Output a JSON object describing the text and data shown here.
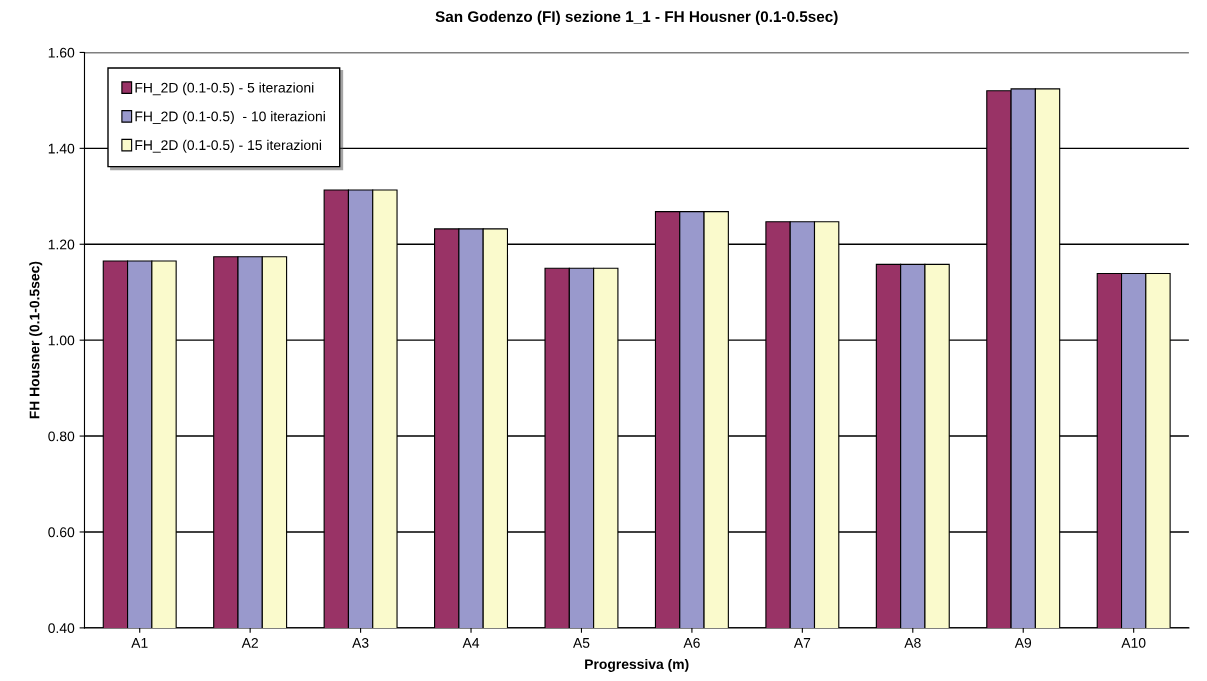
{
  "chart_data": {
    "type": "bar",
    "title": "San Godenzo (FI) sezione 1_1 - FH Housner (0.1-0.5sec)",
    "xlabel": "Progressiva (m)",
    "ylabel": "FH Housner (0.1-0.5sec)",
    "categories": [
      "A1",
      "A2",
      "A3",
      "A4",
      "A5",
      "A6",
      "A7",
      "A8",
      "A9",
      "A10"
    ],
    "series": [
      {
        "name": "FH_2D (0.1-0.5) - 5 iterazioni",
        "color": "#993366",
        "values": [
          1.165,
          1.174,
          1.313,
          1.232,
          1.15,
          1.268,
          1.247,
          1.158,
          1.52,
          1.139
        ]
      },
      {
        "name": "FH_2D (0.1-0.5)  - 10 iterazioni",
        "color": "#9999cc",
        "values": [
          1.165,
          1.174,
          1.313,
          1.232,
          1.15,
          1.268,
          1.247,
          1.158,
          1.524,
          1.139
        ]
      },
      {
        "name": "FH_2D (0.1-0.5) - 15 iterazioni",
        "color": "#fafacc",
        "values": [
          1.165,
          1.174,
          1.313,
          1.232,
          1.15,
          1.268,
          1.247,
          1.158,
          1.524,
          1.139
        ]
      }
    ],
    "ylim": [
      0.4,
      1.6
    ],
    "yticks": [
      {
        "value": 0.4,
        "label": "0.40"
      },
      {
        "value": 0.6,
        "label": "0.60"
      },
      {
        "value": 0.8,
        "label": "0.80"
      },
      {
        "value": 1.0,
        "label": "1.00"
      },
      {
        "value": 1.2,
        "label": "1.20"
      },
      {
        "value": 1.4,
        "label": "1.40"
      },
      {
        "value": 1.6,
        "label": "1.60"
      }
    ],
    "grid": "y",
    "legend": "top left"
  }
}
